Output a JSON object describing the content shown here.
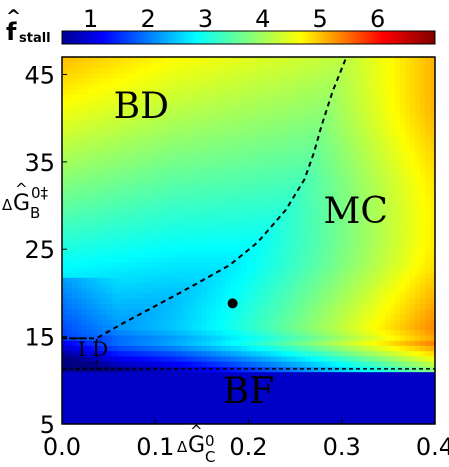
{
  "chart_data": {
    "type": "heatmap",
    "colorbar": {
      "label_main": "f",
      "label_accent": "^",
      "label_sub": "stall",
      "range": [
        0.5,
        7.0
      ],
      "ticks": [
        "1",
        "2",
        "3",
        "4",
        "5",
        "6"
      ],
      "tick_values": [
        1,
        2,
        3,
        4,
        5,
        6
      ],
      "colormap": "jet"
    },
    "x_axis": {
      "label_prefix": "Δ",
      "label_main": "G",
      "label_accent": "^",
      "label_sup": "0",
      "label_sub": "C",
      "range": [
        0.0,
        0.4
      ],
      "ticks": [
        "0.0",
        "0.1",
        "0.2",
        "0.3",
        "0.4"
      ],
      "tick_values": [
        0.0,
        0.1,
        0.2,
        0.3,
        0.4
      ]
    },
    "y_axis": {
      "label_prefix": "Δ",
      "label_main": "G",
      "label_accent": "^",
      "label_sup": "0‡",
      "label_sub": "B",
      "range": [
        5,
        47
      ],
      "ticks": [
        "5",
        "15",
        "25",
        "35",
        "45"
      ],
      "tick_values": [
        5,
        15,
        25,
        35,
        45
      ]
    },
    "regions": [
      {
        "name": "BD",
        "x": 0.085,
        "y": 40
      },
      {
        "name": "MC",
        "x": 0.315,
        "y": 28
      },
      {
        "name": "I D",
        "x": 0.017,
        "y": 12.8
      },
      {
        "name": "BF",
        "x": 0.2,
        "y": 7.4
      }
    ],
    "phase_boundary": [
      {
        "x": 0.0,
        "y": 14.8
      },
      {
        "x": 0.037,
        "y": 14.8
      },
      {
        "x": 0.06,
        "y": 16.2
      },
      {
        "x": 0.1,
        "y": 18.5
      },
      {
        "x": 0.14,
        "y": 20.8
      },
      {
        "x": 0.18,
        "y": 23.2
      },
      {
        "x": 0.21,
        "y": 25.8
      },
      {
        "x": 0.24,
        "y": 29.5
      },
      {
        "x": 0.26,
        "y": 33.0
      },
      {
        "x": 0.27,
        "y": 36.0
      },
      {
        "x": 0.278,
        "y": 39.0
      },
      {
        "x": 0.29,
        "y": 43.0
      },
      {
        "x": 0.305,
        "y": 47.0
      }
    ],
    "id_box": {
      "x_max": 0.037,
      "y_min": 11.3,
      "y_max": 14.8
    },
    "bf_boundary_y": 11.3,
    "marker": {
      "x": 0.183,
      "y": 18.8
    },
    "grid": false
  }
}
